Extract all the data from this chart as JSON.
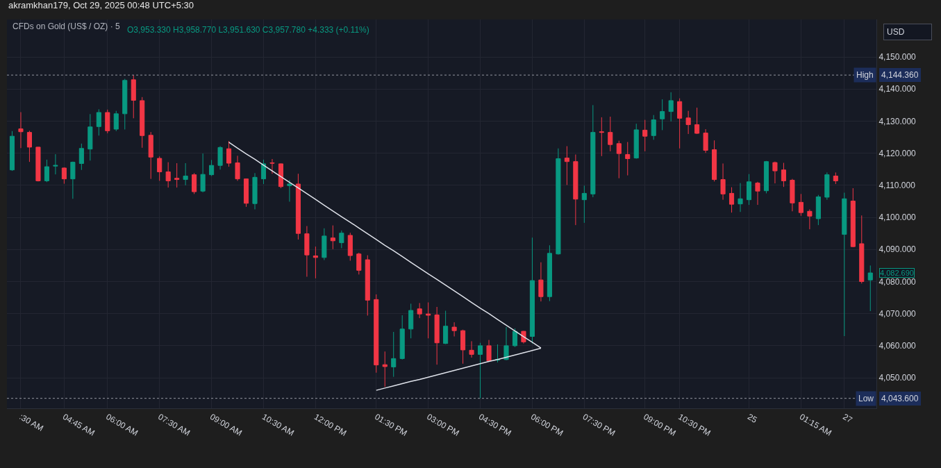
{
  "chart_data": {
    "type": "candlestick",
    "title": "CFDs on Gold (US$ / OZ) · 5",
    "subtitle": "akramkhan179, Oct 29, 2025 00:48 UTC+5:30",
    "annotations": [
      "O3,953.330 H3,958.770 L3,951.630 C3,957.780 +4.333 (+0.11%)",
      "USD",
      "4,144.360",
      "4,043.600",
      "4,082.690"
    ],
    "categories": [
      null,
      ":30 AM",
      null,
      null,
      null,
      null,
      "04:45 AM",
      null,
      null,
      null,
      null,
      "06:00 AM",
      null,
      null,
      null,
      null,
      null,
      "07:30 AM",
      null,
      null,
      null,
      null,
      null,
      "09:00 AM",
      null,
      null,
      null,
      null,
      null,
      "10:30 AM",
      null,
      null,
      null,
      null,
      null,
      "12:00 PM",
      null,
      null,
      null,
      null,
      null,
      null,
      "01:30 PM",
      null,
      null,
      null,
      null,
      null,
      "03:00 PM",
      null,
      null,
      null,
      null,
      null,
      "04:30 PM",
      null,
      null,
      null,
      null,
      null,
      "06:00 PM",
      null,
      null,
      null,
      null,
      null,
      "07:30 PM",
      null,
      null,
      null,
      null,
      null,
      null,
      "09:00 PM",
      null,
      null,
      null,
      "10:30 PM",
      null,
      null,
      null,
      null,
      null,
      null,
      null,
      "25",
      null,
      null,
      null,
      null,
      null,
      "01:15 AM",
      null,
      null,
      null,
      null,
      "27",
      null,
      null,
      null
    ],
    "ohlc": [
      [
        4114.8,
        4126.9,
        4114.5,
        4125.3
      ],
      [
        4127.6,
        4132.8,
        4121.6,
        4126.7
      ],
      [
        4126.5,
        4127,
        4117.3,
        4121.9
      ],
      [
        4121.9,
        4122,
        4111.2,
        4111.4
      ],
      [
        4111.4,
        4118,
        4111,
        4115.8
      ],
      [
        4116,
        4119.7,
        4113.4,
        4116.2
      ],
      [
        4115.4,
        4115.6,
        4110.5,
        4112
      ],
      [
        4112,
        4117.4,
        4105.8,
        4117.2
      ],
      [
        4116.8,
        4123,
        4114.8,
        4121.5
      ],
      [
        4121.3,
        4132.2,
        4117.7,
        4128.2
      ],
      [
        4128.3,
        4133.7,
        4125.5,
        4132.7
      ],
      [
        4132.7,
        4133.6,
        4126.2,
        4127
      ],
      [
        4127.5,
        4133.2,
        4126.9,
        4132.3
      ],
      [
        4132.3,
        4143.2,
        4127.4,
        4142.7
      ],
      [
        4142.9,
        4144.36,
        4130.9,
        4136.5
      ],
      [
        4136.4,
        4137.5,
        4121.7,
        4125.5
      ],
      [
        4125.6,
        4126.6,
        4112,
        4118.8
      ],
      [
        4118.4,
        4119,
        4111.4,
        4114.2
      ],
      [
        4114.2,
        4117.2,
        4109.3,
        4111.4
      ],
      [
        4112.2,
        4116.9,
        4109.3,
        4111.8
      ],
      [
        4111.8,
        4116.9,
        4110,
        4112.9
      ],
      [
        4113.3,
        4113.8,
        4107.3,
        4108
      ],
      [
        4108.2,
        4119.9,
        4107.8,
        4113.4
      ],
      [
        4113.3,
        4117.9,
        4112.9,
        4116.2
      ],
      [
        4116.2,
        4122.2,
        4114.9,
        4121.8
      ],
      [
        4121.4,
        4123.8,
        4115.8,
        4116.9
      ],
      [
        4117,
        4119.2,
        4111.4,
        4112
      ],
      [
        4112,
        4112.1,
        4103.3,
        4104.4
      ],
      [
        4104.3,
        4113.8,
        4102.5,
        4112.5
      ],
      [
        4112,
        4118,
        4110.4,
        4116.7
      ],
      [
        4117,
        4118.2,
        4113.6,
        4116.9
      ],
      [
        4116.7,
        4116.8,
        4109.1,
        4109.6
      ],
      [
        4109.9,
        4111.7,
        4104.9,
        4110.4
      ],
      [
        4110.4,
        4113.6,
        4093.1,
        4095
      ],
      [
        4094.9,
        4097.3,
        4081.5,
        4088.3
      ],
      [
        4088,
        4090.9,
        4081,
        4087.5
      ],
      [
        4087.5,
        4096.6,
        4086.7,
        4094.2
      ],
      [
        4093.6,
        4097.5,
        4090.1,
        4092.7
      ],
      [
        4092.1,
        4095.9,
        4090.4,
        4095.1
      ],
      [
        4094.4,
        4095.2,
        4086.5,
        4088.1
      ],
      [
        4088.6,
        4089,
        4082.2,
        4083.5
      ],
      [
        4086.8,
        4088.2,
        4069.4,
        4074.2
      ],
      [
        4074.4,
        4076,
        4051.6,
        4054
      ],
      [
        4054.1,
        4058.2,
        4047.2,
        4053.5
      ],
      [
        4053.4,
        4064.3,
        4050.3,
        4056
      ],
      [
        4056,
        4069.5,
        4055.7,
        4065.2
      ],
      [
        4065.2,
        4073.1,
        4062.3,
        4071
      ],
      [
        4071.5,
        4073.3,
        4068.6,
        4069.9
      ],
      [
        4069.9,
        4073.5,
        4062.3,
        4069.5
      ],
      [
        4069.6,
        4072.1,
        4054.1,
        4060.9
      ],
      [
        4060.7,
        4070.9,
        4060.5,
        4066.1
      ],
      [
        4065.8,
        4067.3,
        4062.9,
        4064.7
      ],
      [
        4064.7,
        4065,
        4054.4,
        4058.7
      ],
      [
        4058.6,
        4061.4,
        4056.3,
        4057.3
      ],
      [
        4057.3,
        4060.9,
        4043.6,
        4060
      ],
      [
        4060,
        4061.8,
        4055.2,
        4055.3
      ],
      [
        4055.5,
        4060.4,
        4054.8,
        4055.7
      ],
      [
        4055.7,
        4065.8,
        4055.5,
        4060
      ],
      [
        4060,
        4065.4,
        4059.6,
        4064.5
      ],
      [
        4064.5,
        4064.6,
        4060.7,
        4061.2
      ],
      [
        4062.9,
        4093.7,
        4060.7,
        4080.3
      ],
      [
        4080.5,
        4086,
        4073.8,
        4075.3
      ],
      [
        4075.3,
        4091.3,
        4073.9,
        4088.8
      ],
      [
        4088.6,
        4121.5,
        4088.4,
        4118.3
      ],
      [
        4118.5,
        4122.2,
        4110.1,
        4117.4
      ],
      [
        4117.4,
        4119.6,
        4097.6,
        4105.7
      ],
      [
        4105.5,
        4109.9,
        4098.3,
        4107.5
      ],
      [
        4107.3,
        4135,
        4106.3,
        4126.5
      ],
      [
        4126.7,
        4131.2,
        4119.1,
        4126.5
      ],
      [
        4126.5,
        4131.4,
        4120.6,
        4122.7
      ],
      [
        4123,
        4123.9,
        4112.2,
        4119.9
      ],
      [
        4119.6,
        4123.5,
        4113.1,
        4118.3
      ],
      [
        4118.5,
        4129.2,
        4118.3,
        4127.3
      ],
      [
        4127.2,
        4130.4,
        4120.6,
        4125.3
      ],
      [
        4125.5,
        4131.9,
        4124.2,
        4130.4
      ],
      [
        4130.7,
        4136.8,
        4127.2,
        4133
      ],
      [
        4133,
        4139,
        4129.9,
        4136.4
      ],
      [
        4136.1,
        4137.1,
        4121.5,
        4130.9
      ],
      [
        4131,
        4133.2,
        4126,
        4128.9
      ],
      [
        4128.9,
        4134.2,
        4126,
        4126.2
      ],
      [
        4126.3,
        4127.5,
        4120.1,
        4120.9
      ],
      [
        4121.1,
        4124,
        4111.2,
        4111.8
      ],
      [
        4111.8,
        4116.8,
        4105.5,
        4107.3
      ],
      [
        4107.5,
        4109.4,
        4101.5,
        4104.1
      ],
      [
        4104.2,
        4110.7,
        4101.7,
        4105.8
      ],
      [
        4105.5,
        4113.5,
        4103.9,
        4111.1
      ],
      [
        4110.7,
        4111.1,
        4103.9,
        4108.2
      ],
      [
        4108.3,
        4117.6,
        4107.5,
        4117.4
      ],
      [
        4117.1,
        4117.4,
        4110.6,
        4114.5
      ],
      [
        4114.8,
        4117,
        4109.5,
        4111.4
      ],
      [
        4111.6,
        4112,
        4101.9,
        4104.5
      ],
      [
        4104.7,
        4107.3,
        4100.5,
        4101.5
      ],
      [
        4101.9,
        4102.5,
        4096.3,
        4100.4
      ],
      [
        4099.6,
        4107,
        4097.6,
        4106.4
      ],
      [
        4106.3,
        4114,
        4105.5,
        4113.3
      ],
      [
        4112.9,
        4114,
        4110.4,
        4111.4
      ],
      [
        4094.7,
        4107.7,
        4063,
        4105.8
      ],
      [
        4105.1,
        4109.1,
        4090.7,
        4090.9
      ],
      [
        4091.8,
        4100.6,
        4079.4,
        4080
      ],
      [
        4080.5,
        4085,
        4070.8,
        4082.69
      ]
    ],
    "colors": [
      "#089981",
      "#f23645",
      "#f23645",
      "#f23645",
      "#089981",
      "#089981",
      "#f23645",
      "#089981",
      "#089981",
      "#089981",
      "#089981",
      "#f23645",
      "#089981",
      "#089981",
      "#f23645",
      "#f23645",
      "#f23645",
      "#f23645",
      "#f23645",
      "#f23645",
      "#089981",
      "#f23645",
      "#089981",
      "#089981",
      "#089981",
      "#f23645",
      "#f23645",
      "#f23645",
      "#089981",
      "#089981",
      "#f23645",
      "#f23645",
      "#089981",
      "#f23645",
      "#f23645",
      "#f23645",
      "#089981",
      "#f23645",
      "#089981",
      "#f23645",
      "#f23645",
      "#f23645",
      "#f23645",
      "#f23645",
      "#089981",
      "#089981",
      "#089981",
      "#f23645",
      "#f23645",
      "#f23645",
      "#089981",
      "#f23645",
      "#f23645",
      "#f23645",
      "#089981",
      "#f23645",
      "#089981",
      "#089981",
      "#089981",
      "#f23645",
      "#089981",
      "#f23645",
      "#089981",
      "#089981",
      "#f23645",
      "#f23645",
      "#089981",
      "#089981",
      "#f23645",
      "#f23645",
      "#f23645",
      "#f23645",
      "#089981",
      "#f23645",
      "#089981",
      "#089981",
      "#089981",
      "#f23645",
      "#f23645",
      "#f23645",
      "#f23645",
      "#f23645",
      "#f23645",
      "#f23645",
      "#089981",
      "#089981",
      "#f23645",
      "#089981",
      "#f23645",
      "#f23645",
      "#f23645",
      "#f23645",
      "#f23645",
      "#089981",
      "#089981",
      "#f23645",
      "#089981",
      "#f23645",
      "#f23645",
      "#089981"
    ],
    "series": [
      {
        "type": "line",
        "color": "#e0e3eb",
        "values": [
          null,
          null,
          null,
          null,
          null,
          null,
          null,
          null,
          null,
          null,
          null,
          null,
          null,
          null,
          null,
          null,
          null,
          null,
          null,
          null,
          null,
          null,
          null,
          null,
          null,
          4123.4,
          4121.6,
          4119.8,
          4118.1,
          4116.3,
          4114.5,
          4112.7,
          4110.9,
          4109.2,
          4107.4,
          4105.6,
          4103.8,
          4102.0,
          4100.2,
          4098.5,
          4096.7,
          4094.9,
          4093.1,
          4091.3,
          4089.6,
          4087.8,
          4086.0,
          4084.2,
          4082.4,
          4080.7,
          4078.9,
          4077.1,
          4075.3,
          4073.5,
          4071.7,
          4070.0,
          4068.2,
          4066.4,
          4064.6,
          4062.8,
          4061.1,
          4059.3,
          null,
          null,
          null,
          null,
          null,
          null,
          null,
          null,
          null,
          null,
          null,
          null,
          null,
          null,
          null,
          null,
          null,
          null,
          null,
          null,
          null,
          null,
          null,
          null,
          null,
          null,
          null,
          null,
          null,
          null,
          null,
          null,
          null,
          null,
          null,
          null,
          null,
          null
        ]
      },
      {
        "type": "line",
        "color": "#e0e3eb",
        "values": [
          null,
          null,
          null,
          null,
          null,
          null,
          null,
          null,
          null,
          null,
          null,
          null,
          null,
          null,
          null,
          null,
          null,
          null,
          null,
          null,
          null,
          null,
          null,
          null,
          null,
          null,
          null,
          null,
          null,
          null,
          null,
          null,
          null,
          null,
          null,
          null,
          null,
          null,
          null,
          null,
          null,
          null,
          4046.1,
          4046.8,
          4047.5,
          4048.2,
          4048.9,
          4049.5,
          4050.2,
          4050.9,
          4051.6,
          4052.3,
          4053.0,
          4053.7,
          4054.4,
          4055.1,
          4055.7,
          4056.4,
          4057.1,
          4057.8,
          4058.5,
          4059.2,
          null,
          null,
          null,
          null,
          null,
          null,
          null,
          null,
          null,
          null,
          null,
          null,
          null,
          null,
          null,
          null,
          null,
          null,
          null,
          null,
          null,
          null,
          null,
          null,
          null,
          null,
          null,
          null,
          null,
          null,
          null,
          null,
          null,
          null,
          null,
          null,
          null,
          null
        ]
      }
    ],
    "ylim": [
      4040.5,
      4161.7
    ],
    "yticks": [
      {
        "value": 4050,
        "label": "4,050.000"
      },
      {
        "value": 4060,
        "label": "4,060.000"
      },
      {
        "value": 4070,
        "label": "4,070.000"
      },
      {
        "value": 4080,
        "label": "4,080.000"
      },
      {
        "value": 4090,
        "label": "4,090.000"
      },
      {
        "value": 4100,
        "label": "4,100.000"
      },
      {
        "value": 4110,
        "label": "4,110.000"
      },
      {
        "value": 4120,
        "label": "4,120.000"
      },
      {
        "value": 4130,
        "label": "4,130.000"
      },
      {
        "value": 4140,
        "label": "4,140.000"
      },
      {
        "value": 4150,
        "label": "4,150.000"
      }
    ],
    "ref_lines": [
      {
        "axis": "y",
        "value": 4144.36,
        "label": "High",
        "color": "#9598a1",
        "line_style": "dotted"
      },
      {
        "axis": "y",
        "value": 4043.6,
        "label": "Low",
        "color": "#9598a1",
        "line_style": "dotted"
      }
    ],
    "grid": true
  }
}
